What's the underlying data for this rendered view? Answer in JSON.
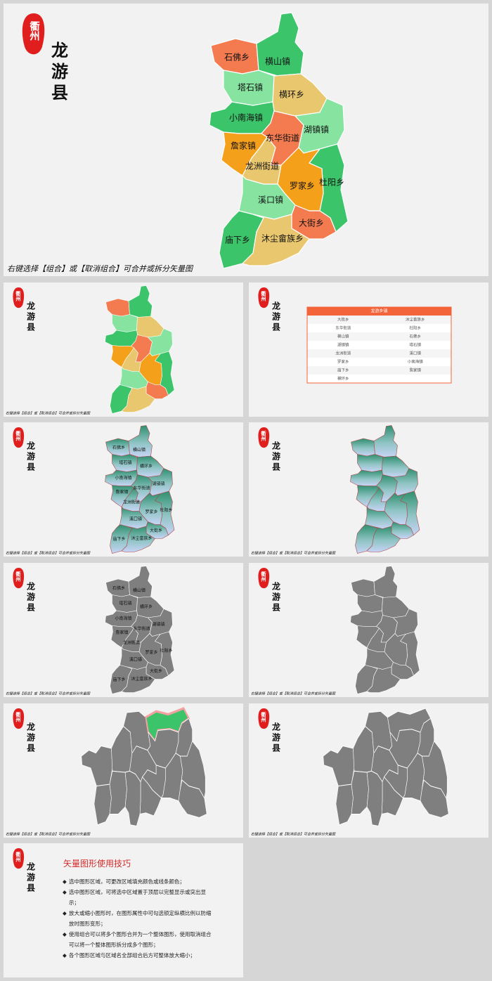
{
  "logo": "衢州",
  "title": "龙游县",
  "caption": "右键选择【组合】或【取消组合】可合并或拆分矢量图",
  "regions": [
    "石佛乡",
    "横山镇",
    "塔石镇",
    "横环乡",
    "小南海镇",
    "东华街道",
    "湖镇镇",
    "詹家镇",
    "龙洲街道",
    "杜阳乡",
    "罗家乡",
    "溪口镇",
    "大街乡",
    "庙下乡",
    "沐尘畲族乡"
  ],
  "table": {
    "header": "龙游乡镇",
    "rows": [
      [
        "大街乡",
        "沐尘畲族乡"
      ],
      [
        "东华街道",
        "杜阳乡"
      ],
      [
        "横山镇",
        "石佛乡"
      ],
      [
        "湖镇镇",
        "塔石镇"
      ],
      [
        "龙洲街道",
        "溪口镇"
      ],
      [
        "罗家乡",
        "小南海镇"
      ],
      [
        "庙下乡",
        "詹家镇"
      ],
      [
        "横环乡"
      ]
    ]
  },
  "tips": {
    "title": "矢量图形使用技巧",
    "items": [
      "选中图形区域，可更改区域填充颜色或线条颜色；",
      "选中图形区域，可将选中区域置于顶层以完整显示或突出显示；",
      "放大或缩小图形时，在图形属性中可勾选锁定纵横比例以防缩放时图形变形；",
      "使用组合可以将多个图形合并为一个整体图形，使用取消组合可以将一个整体图形拆分成多个图形；",
      "各个图形区域与区域名全部组合后方可整体放大缩小；"
    ]
  }
}
